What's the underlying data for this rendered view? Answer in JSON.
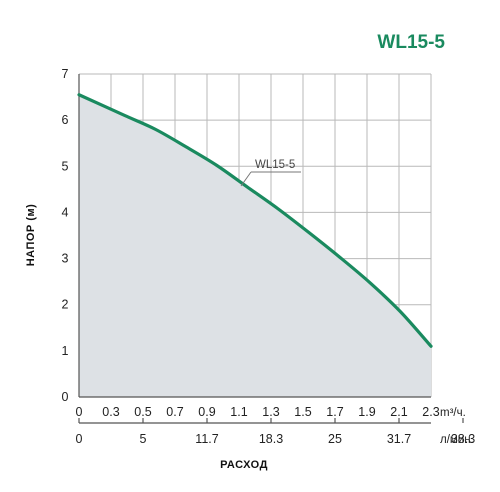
{
  "chart_data": {
    "type": "area",
    "title": "WL15-5",
    "xlabel": "РАСХОД",
    "ylabel": "НАПОР (м)",
    "x_unit": "m³/ч.",
    "x2_unit": "л/мин.",
    "x_ticks": [
      "0",
      "0.3",
      "0.5",
      "0.7",
      "0.9",
      "1.1",
      "1.3",
      "1.5",
      "1.7",
      "1.9",
      "2.1",
      "2.3"
    ],
    "x2_ticks": [
      "0",
      "5",
      "11.7",
      "18.3",
      "25",
      "31.7",
      "38.3"
    ],
    "y_ticks": [
      "0",
      "1",
      "2",
      "3",
      "4",
      "5",
      "6",
      "7"
    ],
    "ylim": [
      0,
      7
    ],
    "grid": true,
    "series": [
      {
        "name": "WL15-5",
        "x": [
          0,
          0.3,
          0.5,
          0.7,
          0.9,
          1.1,
          1.3,
          1.5,
          1.7,
          1.9,
          2.1,
          2.3
        ],
        "y": [
          6.55,
          6.1,
          5.8,
          5.42,
          5.02,
          4.55,
          4.08,
          3.57,
          3.04,
          2.48,
          1.85,
          1.1
        ]
      }
    ],
    "colors": {
      "line": "#1a8a5f",
      "fill": "#dde1e5",
      "grid": "#b9b9b9"
    }
  }
}
